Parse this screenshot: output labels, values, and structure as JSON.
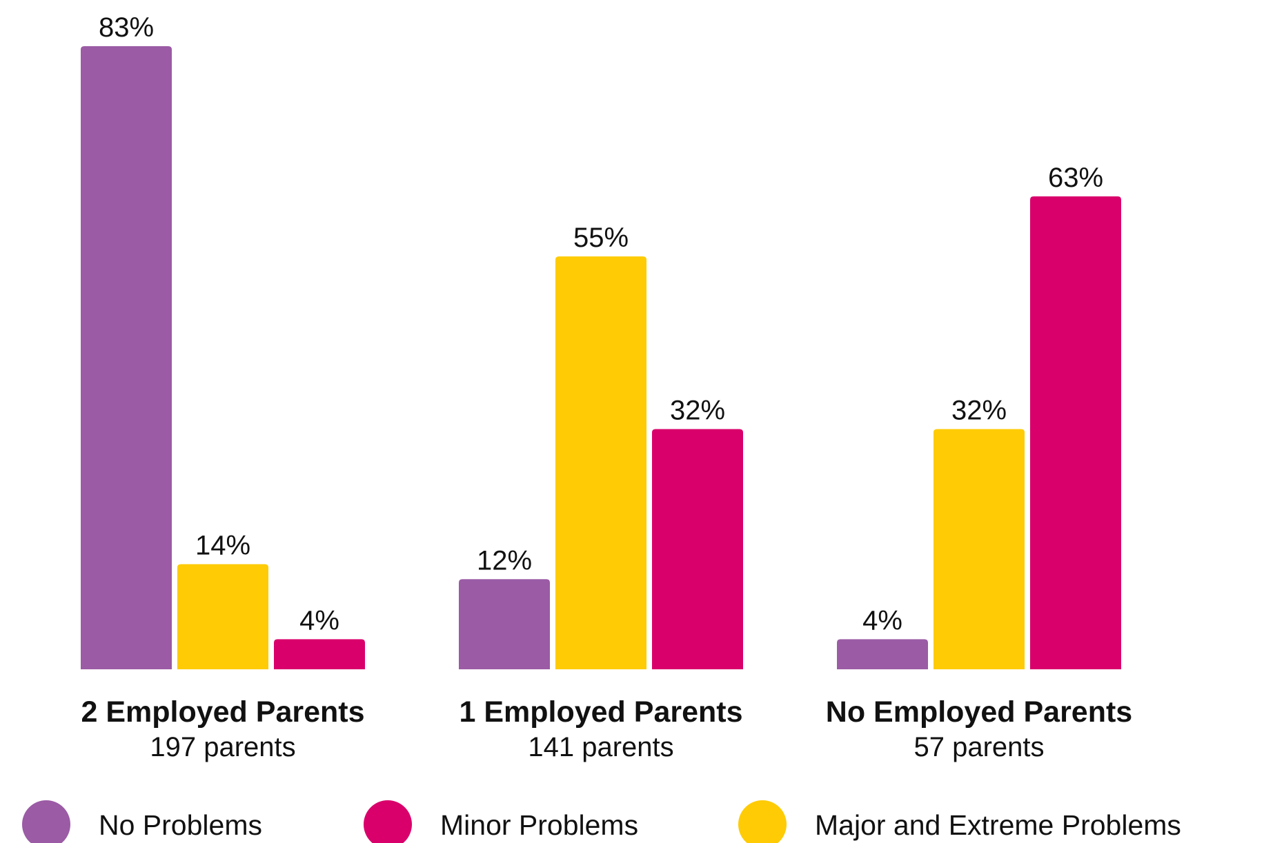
{
  "chart_data": {
    "type": "bar",
    "categories": [
      "2 Employed Parents",
      "1 Employed Parents",
      "No Employed Parents"
    ],
    "category_notes": [
      "197 parents",
      "141 parents",
      "57 parents"
    ],
    "series": [
      {
        "name": "No Problems",
        "color": "#9b5ba5",
        "values": [
          83,
          12,
          4
        ],
        "value_labels": [
          "83%",
          "12%",
          "4%"
        ]
      },
      {
        "name": "Minor Problems",
        "color": "#d9006b",
        "values": [
          4,
          32,
          63
        ],
        "value_labels": [
          "4%",
          "32%",
          "63%"
        ]
      },
      {
        "name": "Major and Extreme Problems",
        "color": "#fecb05",
        "values": [
          14,
          55,
          32
        ],
        "value_labels": [
          "14%",
          "55%",
          "32%"
        ]
      }
    ]
  }
}
